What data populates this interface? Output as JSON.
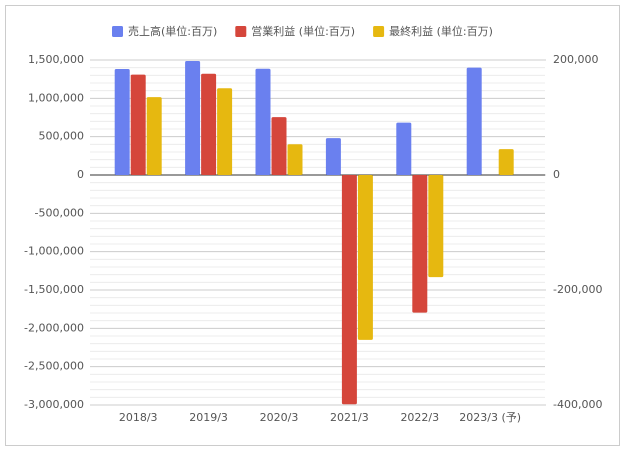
{
  "chart_data": {
    "type": "bar",
    "categories": [
      "2018/3",
      "2019/3",
      "2020/3",
      "2021/3",
      "2022/3",
      "2023/3 (予)"
    ],
    "series": [
      {
        "name": "売上高(単位:百万)",
        "color": "#6a80ef",
        "values": [
          1383257,
          1487261,
          1385546,
          481225,
          682713,
          1400000
        ]
      },
      {
        "name": "営業利益 (単位:百万)",
        "color": "#d5463b",
        "axis": "y2",
        "values": [
          174565,
          176124,
          100640,
          -398647,
          -239449,
          null
        ]
      },
      {
        "name": "最終利益 (単位:百万)",
        "color": "#e6b810",
        "axis": "y2",
        "values": [
          135406,
          150807,
          53407,
          -286693,
          -177551,
          45000
        ]
      }
    ],
    "ylim": [
      -3000000,
      1500000
    ],
    "yticks": [
      {
        "value": -3000000,
        "label": "-3,000,000"
      },
      {
        "value": -2500000,
        "label": "-2,500,000"
      },
      {
        "value": -2000000,
        "label": "-2,000,000"
      },
      {
        "value": -1500000,
        "label": "-1,500,000"
      },
      {
        "value": -1000000,
        "label": "-1,000,000"
      },
      {
        "value": -500000,
        "label": "-500,000"
      },
      0,
      {
        "value": 500000,
        "label": "500,000"
      },
      {
        "value": 1000000,
        "label": "1,000,000"
      },
      {
        "value": 1500000,
        "label": "1,500,000"
      }
    ],
    "y2lim": [
      -400000,
      200000
    ],
    "y2ticks": [
      {
        "value": -400000,
        "label": "-400,000"
      },
      {
        "value": -200000,
        "label": "-200,000"
      },
      0,
      {
        "value": 200000,
        "label": "200,000"
      }
    ],
    "grid": true,
    "legend": "top"
  }
}
